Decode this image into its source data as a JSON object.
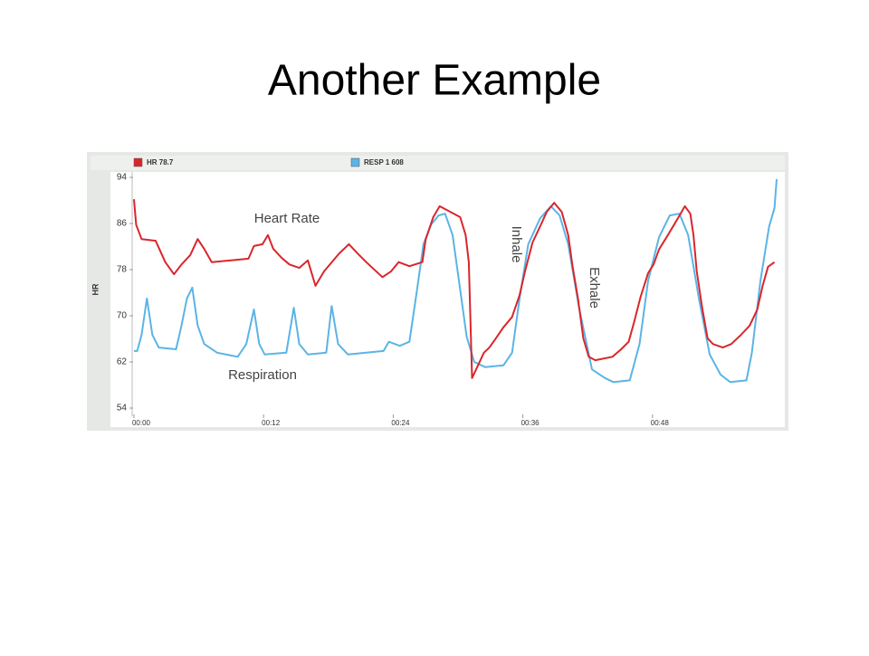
{
  "title": "Another Example",
  "chart_data": {
    "type": "line",
    "y_label": "HR",
    "x": [],
    "xlim": [
      0,
      60
    ],
    "xticks": [
      {
        "value": 0,
        "label": "00:00"
      },
      {
        "value": 12,
        "label": "00:12"
      },
      {
        "value": 24,
        "label": "00:24"
      },
      {
        "value": 36,
        "label": "00:36"
      },
      {
        "value": 48,
        "label": "00:48"
      }
    ],
    "ylim": [
      54,
      94
    ],
    "yticks": [
      54,
      62,
      70,
      78,
      86,
      94
    ],
    "annotations": [
      "Heart Rate",
      "Respiration",
      "Inhale",
      "Exhale"
    ],
    "series": [
      {
        "name": "HR 78.7",
        "color": "#d9262c",
        "x": [
          0,
          0.2,
          0.7,
          2.0,
          2.9,
          3.7,
          4.4,
          5.2,
          5.9,
          6.5,
          7.2,
          10.6,
          11.1,
          11.9,
          12.4,
          12.9,
          13.7,
          14.4,
          15.3,
          16.1,
          16.8,
          17.6,
          19.0,
          19.9,
          20.7,
          21.5,
          23.0,
          23.8,
          24.5,
          25.5,
          26.7,
          27.0,
          27.7,
          28.3,
          30.2,
          30.7,
          31.0,
          31.3,
          32.4,
          32.9,
          33.5,
          34.2,
          35.0,
          35.7,
          36.2,
          36.9,
          37.6,
          38.2,
          38.9,
          39.6,
          40.2,
          40.6,
          41.1,
          41.6,
          42.1,
          42.7,
          44.3,
          45.1,
          45.8,
          46.3,
          46.9,
          47.6,
          48.1,
          48.6,
          49.3,
          50.0,
          50.6,
          51.0,
          51.5,
          51.8,
          52.1,
          52.6,
          53.1,
          53.6,
          54.5,
          55.3,
          56.2,
          57.0,
          57.7,
          58.2,
          58.7,
          59.3
        ],
        "values": [
          90.2,
          85.8,
          83.3,
          83.0,
          79.3,
          77.2,
          78.9,
          80.5,
          83.3,
          81.6,
          79.3,
          79.9,
          82.1,
          82.4,
          84.0,
          81.6,
          80.0,
          78.9,
          78.3,
          79.6,
          75.2,
          77.7,
          80.8,
          82.4,
          80.8,
          79.3,
          76.7,
          77.7,
          79.3,
          78.6,
          79.3,
          83.2,
          87.1,
          89.0,
          87.1,
          84.0,
          79.3,
          59.2,
          63.6,
          64.5,
          66.1,
          68.0,
          69.8,
          73.6,
          77.7,
          82.7,
          85.5,
          88.0,
          89.6,
          88.0,
          84.0,
          78.6,
          73.0,
          66.1,
          62.9,
          62.3,
          62.9,
          64.2,
          65.5,
          68.9,
          73.3,
          77.4,
          78.9,
          81.5,
          83.6,
          85.8,
          87.7,
          89.0,
          87.7,
          84.0,
          77.7,
          71.4,
          66.1,
          65.1,
          64.5,
          65.1,
          66.7,
          68.3,
          71.1,
          75.2,
          78.5,
          79.3
        ]
      },
      {
        "name": "RESP 1 608",
        "color": "#5bb4e5",
        "x": [
          0,
          0.3,
          0.7,
          1.2,
          1.7,
          2.3,
          3.9,
          4.4,
          4.9,
          5.4,
          5.9,
          6.5,
          7.7,
          9.6,
          10.4,
          11.1,
          11.6,
          12.1,
          14.1,
          14.8,
          15.3,
          16.1,
          17.8,
          18.3,
          18.9,
          19.8,
          23.1,
          23.6,
          24.6,
          25.5,
          26.2,
          26.8,
          27.5,
          28.2,
          28.8,
          29.5,
          30.2,
          30.8,
          31.5,
          32.5,
          34.2,
          35.0,
          35.7,
          36.5,
          37.6,
          38.6,
          39.4,
          40.2,
          41.2,
          42.4,
          43.6,
          44.4,
          45.9,
          46.8,
          47.6,
          48.6,
          49.6,
          50.5,
          51.3,
          52.3,
          53.3,
          54.3,
          55.2,
          56.7,
          57.2,
          58.0,
          58.8,
          59.3,
          59.5
        ],
        "values": [
          63.9,
          63.9,
          66.7,
          73.0,
          66.7,
          64.5,
          64.2,
          68.3,
          73.0,
          74.9,
          68.3,
          65.1,
          63.6,
          62.9,
          65.1,
          71.1,
          65.1,
          63.3,
          63.6,
          71.4,
          65.1,
          63.3,
          63.6,
          71.7,
          65.1,
          63.3,
          63.9,
          65.5,
          64.8,
          65.5,
          74.5,
          82.4,
          85.8,
          87.4,
          87.7,
          84.0,
          74.5,
          66.4,
          62.0,
          61.1,
          61.4,
          63.6,
          73.0,
          82.4,
          86.9,
          89.0,
          87.4,
          82.4,
          71.4,
          60.7,
          59.2,
          58.5,
          58.8,
          65.1,
          76.1,
          83.6,
          87.4,
          87.7,
          84.0,
          73.0,
          63.3,
          59.8,
          58.5,
          58.8,
          63.6,
          76.1,
          85.5,
          88.7,
          93.7
        ]
      }
    ]
  }
}
